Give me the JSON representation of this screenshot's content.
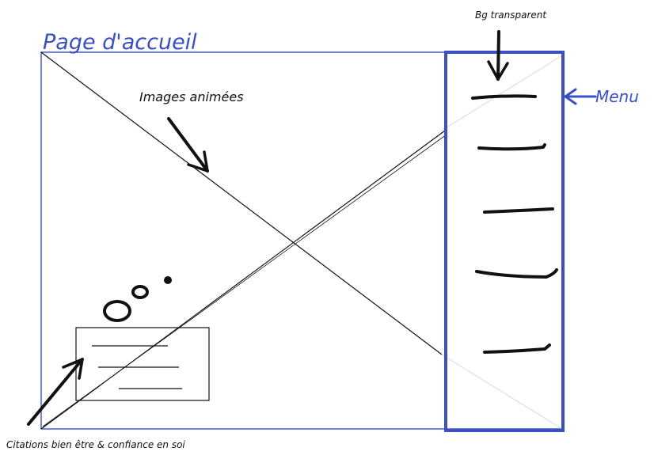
{
  "labels": {
    "page_title": "Page d'accueil",
    "bg_note": "Bg transparent",
    "animated_images": "Images animées",
    "menu": "Menu",
    "quotes": "Citations bien être & confiance en soi"
  },
  "colors": {
    "blue": "#3b4fc4",
    "ink": "#111111",
    "faint": "#d9d9d9"
  },
  "menu_items_count": 5
}
